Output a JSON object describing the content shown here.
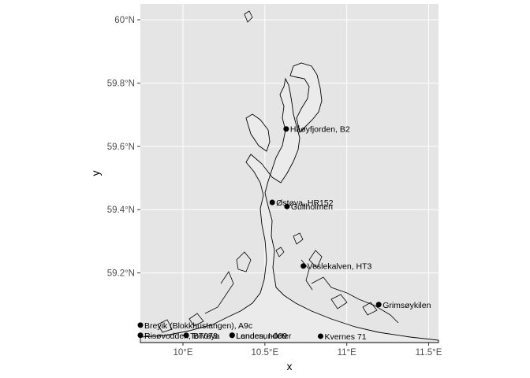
{
  "map": {
    "xlabel": "x",
    "ylabel": "y",
    "lon_range": [
      9.74,
      11.56
    ],
    "lat_range": [
      58.98,
      60.05
    ],
    "x_ticks": [
      {
        "value": 10.0,
        "label": "10°E"
      },
      {
        "value": 10.5,
        "label": "10.5°E"
      },
      {
        "value": 11.0,
        "label": "11°E"
      },
      {
        "value": 11.5,
        "label": "11.5°E"
      }
    ],
    "y_ticks": [
      {
        "value": 59.2,
        "label": "59.2°N"
      },
      {
        "value": 59.4,
        "label": "59.4°N"
      },
      {
        "value": 59.6,
        "label": "59.6°N"
      },
      {
        "value": 59.8,
        "label": "59.8°N"
      },
      {
        "value": 60.0,
        "label": "60°N"
      }
    ],
    "colors": {
      "panel": "#e5e5e5",
      "grid": "#ffffff",
      "sea": "#ebebeb",
      "coast": "#000000",
      "point": "#000000"
    }
  },
  "stations": [
    {
      "name": "Håøyfjorden, B2",
      "lon": 10.63,
      "lat": 59.655
    },
    {
      "name": "Østøya, HR152",
      "lon": 10.545,
      "lat": 59.423
    },
    {
      "name": "Gullholmen",
      "lon": 10.635,
      "lat": 59.41
    },
    {
      "name": "Veslekalven, HT3",
      "lon": 10.735,
      "lat": 59.222
    },
    {
      "name": "Grimsøykilen",
      "lon": 11.195,
      "lat": 59.1
    },
    {
      "name": "Breyik (Blokkhustangen), A9c",
      "lon": 9.74,
      "lat": 59.035
    },
    {
      "name": "Risøvodden, BT078",
      "lon": 9.74,
      "lat": 59.003
    },
    {
      "name": "Torvøya",
      "lon": 10.02,
      "lat": 59.003
    },
    {
      "name": "Landesundeter",
      "lon": 10.3,
      "lat": 59.003
    },
    {
      "name": "Lenden, I-009",
      "lon": 10.3,
      "lat": 59.003
    },
    {
      "name": "Kvernes 71",
      "lon": 10.84,
      "lat": 59.0
    }
  ]
}
